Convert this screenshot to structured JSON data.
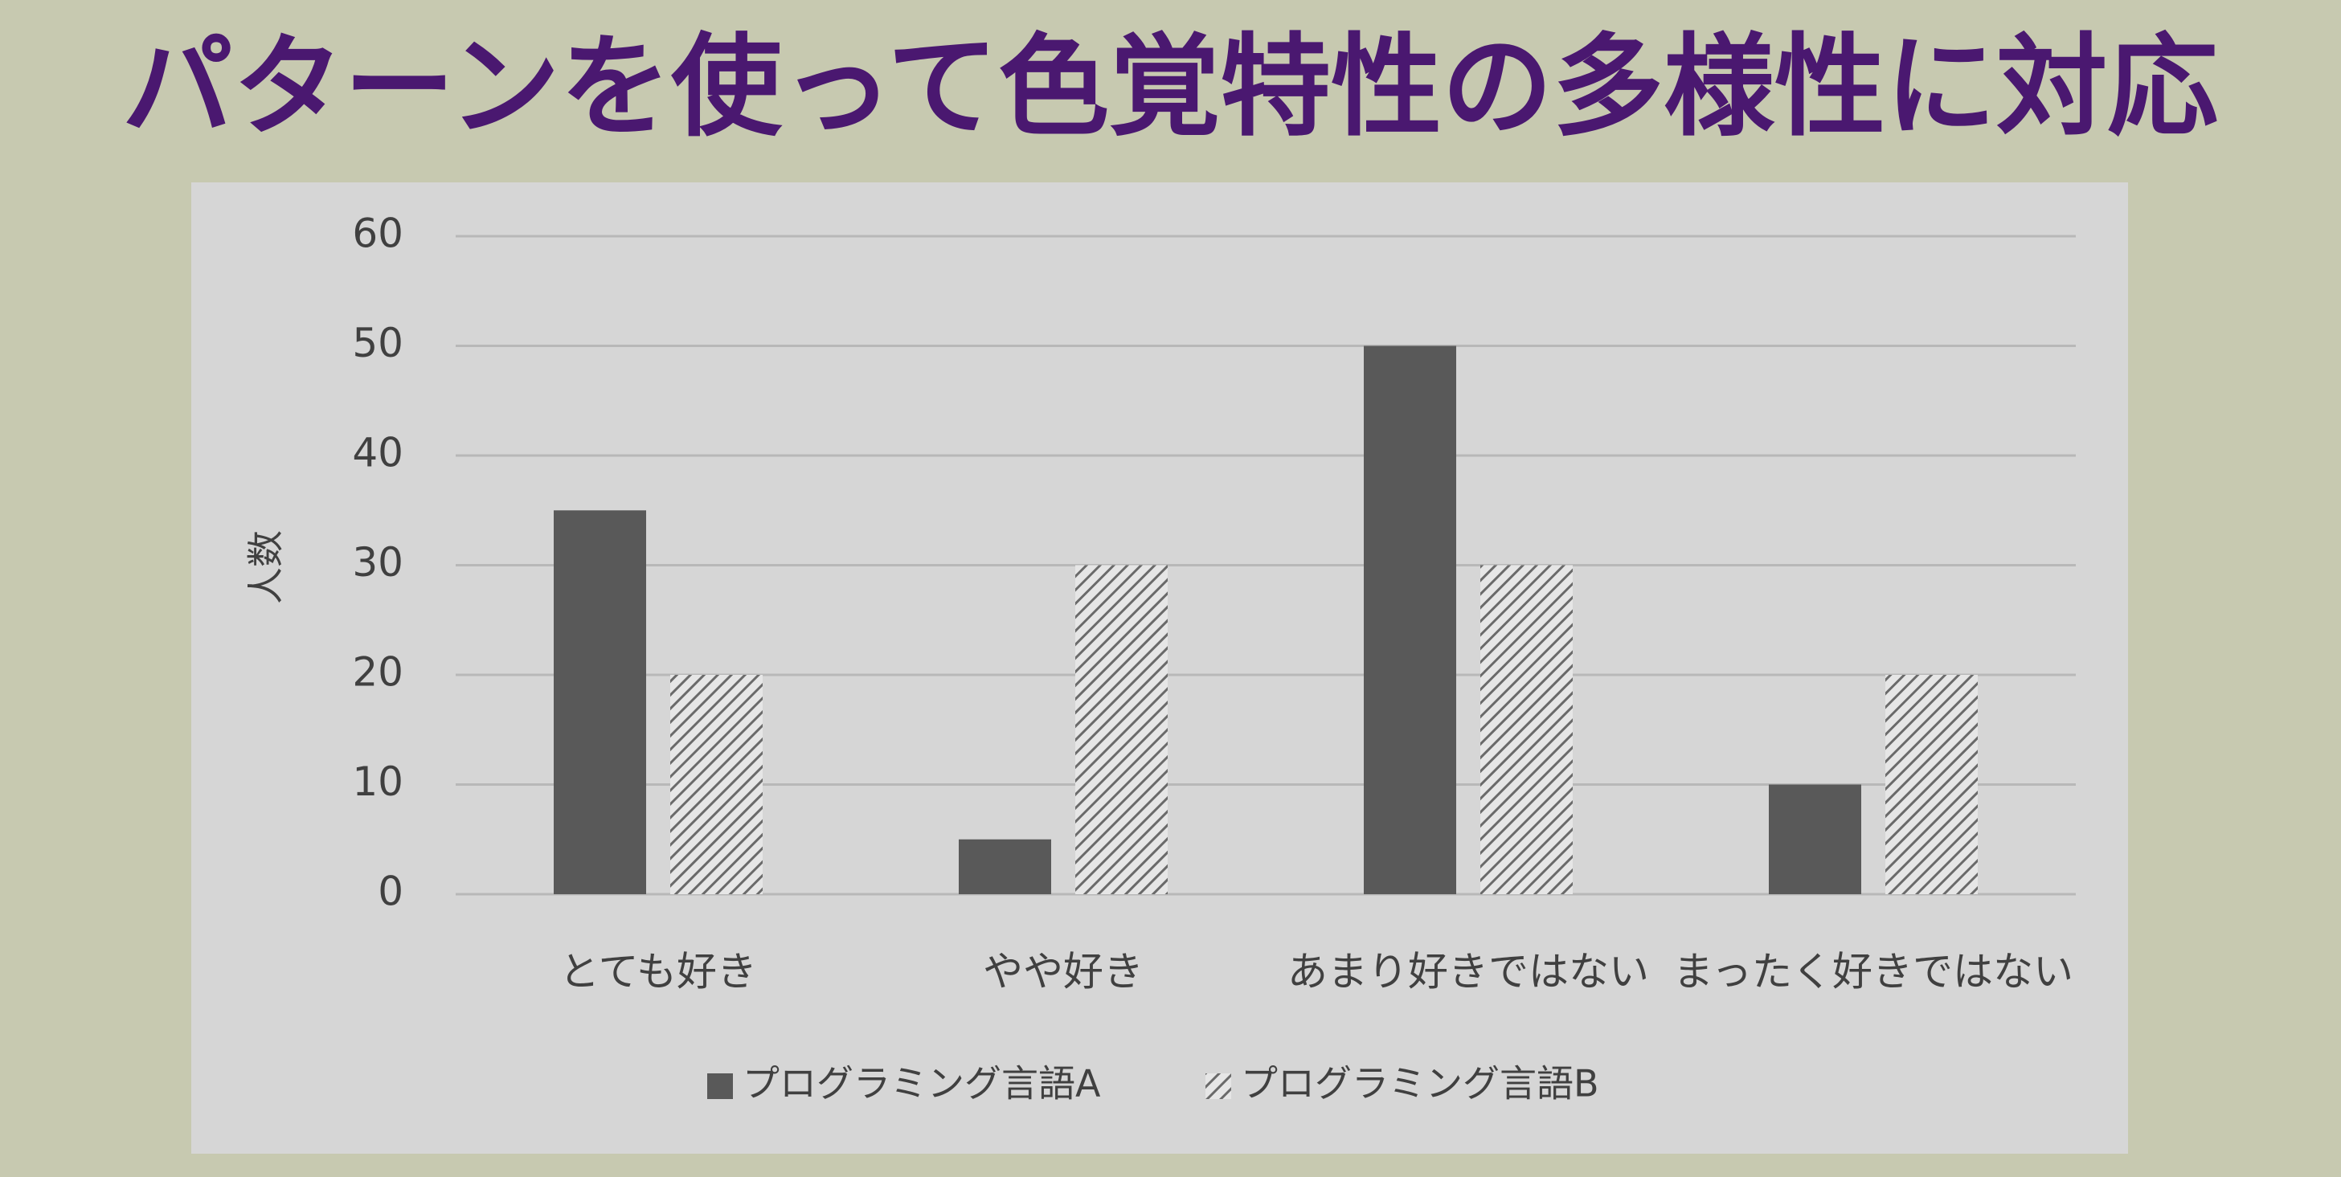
{
  "chart_data": {
    "type": "bar",
    "title": "パターンを使って色覚特性の多様性に対応",
    "y_label": "人数",
    "categories": [
      "とても好き",
      "やや好き",
      "あまり好きではない",
      "まったく好きではない"
    ],
    "series": [
      {
        "name": "プログラミング言語A",
        "color": "#595959",
        "pattern": "solid",
        "values": [
          35,
          5,
          50,
          10
        ]
      },
      {
        "name": "プログラミング言語B",
        "color": "#7a7a7a",
        "pattern": "hatch",
        "values": [
          20,
          30,
          30,
          20
        ]
      }
    ],
    "ylim": [
      0,
      60
    ],
    "yticks": [
      0,
      10,
      20,
      30,
      40,
      50,
      60
    ],
    "grid": true,
    "legend": "bottom"
  }
}
